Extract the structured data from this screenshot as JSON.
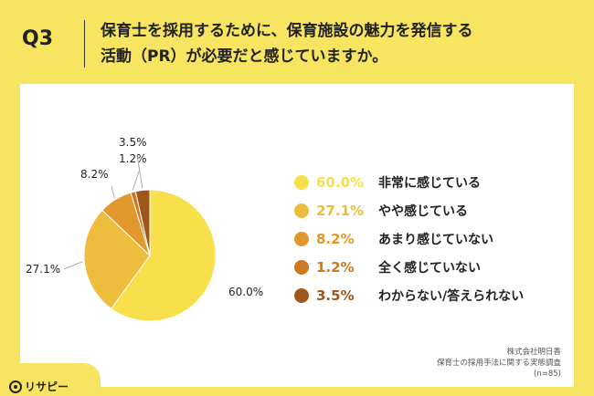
{
  "header": {
    "q_label": "Q3",
    "title_line1": "保育士を採用するために、保育施設の魅力を発信する",
    "title_line2": "活動（PR）が必要だと感じていますか。"
  },
  "chart_data": {
    "type": "pie",
    "categories": [
      "非常に感じている",
      "やや感じている",
      "あまり感じていない",
      "全く感じていない",
      "わからない/答えられない"
    ],
    "values": [
      60.0,
      27.1,
      8.2,
      1.2,
      3.5
    ],
    "value_labels": [
      "60.0%",
      "27.1%",
      "8.2%",
      "1.2%",
      "3.5%"
    ],
    "colors": [
      "#f7e04b",
      "#efbd3d",
      "#e1992d",
      "#cd7920",
      "#9e561a"
    ],
    "legend_position": "right"
  },
  "footer": {
    "source_line1": "株式会社明日香",
    "source_line2": "保育士の採用手法に関する実態調査",
    "source_line3": "(n=85)",
    "logo_text": "リサピー"
  }
}
